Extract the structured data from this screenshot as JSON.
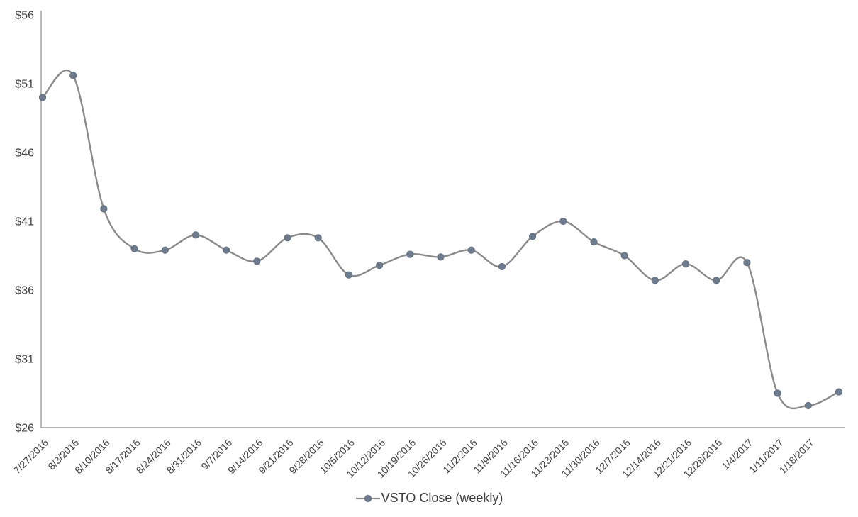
{
  "chart_data": {
    "type": "line",
    "title": "",
    "xlabel": "",
    "ylabel": "",
    "smooth": true,
    "marker": "circle",
    "grid": "off",
    "legend_position": "bottom-center",
    "ylim": [
      26,
      56
    ],
    "ytick_step": 5,
    "ytick_labels": [
      "$56",
      "$51",
      "$46",
      "$41",
      "$36",
      "$31",
      "$26"
    ],
    "categories": [
      "7/27/2016",
      "8/3/2016",
      "8/10/2016",
      "8/17/2016",
      "8/24/2016",
      "8/31/2016",
      "9/7/2016",
      "9/14/2016",
      "9/21/2016",
      "9/28/2016",
      "10/5/2016",
      "10/12/2016",
      "10/19/2016",
      "10/26/2016",
      "11/2/2016",
      "11/9/2016",
      "11/16/2016",
      "11/23/2016",
      "11/30/2016",
      "12/7/2016",
      "12/14/2016",
      "12/21/2016",
      "12/28/2016",
      "1/4/2017",
      "1/11/2017",
      "1/18/2017",
      ""
    ],
    "series": [
      {
        "name": "VSTO Close (weekly)",
        "values": [
          50.0,
          51.6,
          41.9,
          39.0,
          38.9,
          40.0,
          38.9,
          38.1,
          39.8,
          39.8,
          37.1,
          37.8,
          38.6,
          38.4,
          38.9,
          37.7,
          39.9,
          41.0,
          39.5,
          38.5,
          36.7,
          37.9,
          36.7,
          38.0,
          28.5,
          27.6,
          28.6
        ]
      }
    ]
  },
  "colors": {
    "series_line": "#8a8a8a",
    "marker_fill": "#6e7c8d",
    "marker_stroke": "#5f6e80",
    "axis_line": "#9b9b9b",
    "label_text": "#3d3d3d"
  },
  "legend": {
    "label": "VSTO Close (weekly)"
  }
}
